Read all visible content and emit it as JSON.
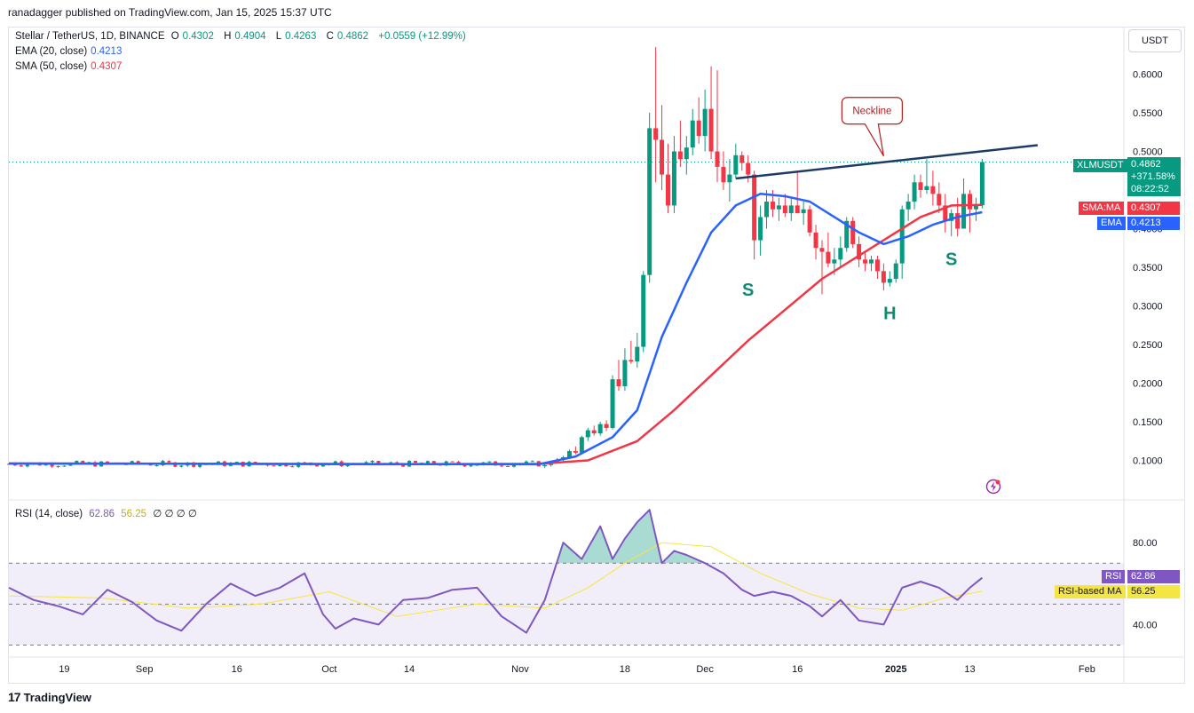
{
  "header": {
    "text": "ranadagger published on TradingView.com, Jan 15, 2025 15:37 UTC"
  },
  "legend": {
    "symbol": "Stellar / TetherUS, 1D, BINANCE",
    "open_label": "O",
    "open": "0.4302",
    "high_label": "H",
    "high": "0.4904",
    "low_label": "L",
    "low": "0.4263",
    "close_label": "C",
    "close": "0.4862",
    "change": "+0.0559 (+12.99%)",
    "ema_label": "EMA (20, close)",
    "ema_value": "0.4213",
    "sma_label": "SMA (50, close)",
    "sma_value": "0.4307",
    "rsi_label": "RSI (14, close)",
    "rsi_value": "62.86",
    "rsi_ma_value": "56.25",
    "rsi_extra": "∅ ∅ ∅ ∅"
  },
  "unit": "USDT",
  "price_tags": {
    "symbol": "XLMUSDT",
    "price": "0.4862",
    "change_pct": "+371.58%",
    "countdown": "08:22:52",
    "sma_label": "SMA:MA",
    "sma_value": "0.4307",
    "ema_label": "EMA",
    "ema_value": "0.4213",
    "rsi_label": "RSI",
    "rsi_value": "62.86",
    "rsi_ma_label": "RSI-based MA",
    "rsi_ma_value": "56.25"
  },
  "colors": {
    "up": "#089981",
    "down": "#f23645",
    "ema": "#2962ff",
    "sma": "#f23645",
    "rsi": "#7e57c2",
    "rsi_ma": "#f5e542",
    "trend": "#1e3a66",
    "annot": "#0f8a75"
  },
  "footer": {
    "brand": "TradingView",
    "logo": "17"
  },
  "chart_data": [
    {
      "type": "candlestick",
      "title": "Stellar / TetherUS, 1D, BINANCE",
      "ylim": [
        0.05,
        0.65
      ],
      "y_ticks": [
        "0.1000",
        "0.1500",
        "0.2000",
        "0.2500",
        "0.3000",
        "0.3500",
        "0.4000",
        "0.4500",
        "0.5000",
        "0.5500",
        "0.6000"
      ],
      "x_ticks": [
        "19",
        "Sep",
        "16",
        "Oct",
        "14",
        "Nov",
        "18",
        "Dec",
        "16",
        "2025",
        "13",
        "Feb"
      ],
      "x_tick_dates": [
        "2024-08-19",
        "2024-09-01",
        "2024-09-16",
        "2024-10-01",
        "2024-10-14",
        "2024-11-01",
        "2024-11-18",
        "2024-12-01",
        "2024-12-16",
        "2025-01-01",
        "2025-01-13",
        "2025-02-01"
      ],
      "x_start": "2024-08-10",
      "x_end": "2025-02-07",
      "candles": [
        {
          "d": "2024-11-05",
          "o": 0.0925,
          "h": 0.096,
          "l": 0.09,
          "c": 0.094
        },
        {
          "d": "2024-11-06",
          "o": 0.094,
          "h": 0.1,
          "l": 0.092,
          "c": 0.0985
        },
        {
          "d": "2024-11-07",
          "o": 0.0985,
          "h": 0.103,
          "l": 0.096,
          "c": 0.101
        },
        {
          "d": "2024-11-08",
          "o": 0.101,
          "h": 0.106,
          "l": 0.099,
          "c": 0.104
        },
        {
          "d": "2024-11-09",
          "o": 0.104,
          "h": 0.114,
          "l": 0.103,
          "c": 0.112
        },
        {
          "d": "2024-11-10",
          "o": 0.112,
          "h": 0.118,
          "l": 0.108,
          "c": 0.11
        },
        {
          "d": "2024-11-11",
          "o": 0.11,
          "h": 0.132,
          "l": 0.109,
          "c": 0.13
        },
        {
          "d": "2024-11-12",
          "o": 0.13,
          "h": 0.142,
          "l": 0.125,
          "c": 0.139
        },
        {
          "d": "2024-11-13",
          "o": 0.139,
          "h": 0.145,
          "l": 0.132,
          "c": 0.135
        },
        {
          "d": "2024-11-14",
          "o": 0.135,
          "h": 0.15,
          "l": 0.132,
          "c": 0.147
        },
        {
          "d": "2024-11-15",
          "o": 0.147,
          "h": 0.152,
          "l": 0.138,
          "c": 0.142
        },
        {
          "d": "2024-11-16",
          "o": 0.142,
          "h": 0.21,
          "l": 0.14,
          "c": 0.205
        },
        {
          "d": "2024-11-17",
          "o": 0.205,
          "h": 0.23,
          "l": 0.19,
          "c": 0.196
        },
        {
          "d": "2024-11-18",
          "o": 0.196,
          "h": 0.245,
          "l": 0.19,
          "c": 0.23
        },
        {
          "d": "2024-11-19",
          "o": 0.23,
          "h": 0.255,
          "l": 0.225,
          "c": 0.228
        },
        {
          "d": "2024-11-20",
          "o": 0.228,
          "h": 0.265,
          "l": 0.22,
          "c": 0.247
        },
        {
          "d": "2024-11-21",
          "o": 0.247,
          "h": 0.345,
          "l": 0.24,
          "c": 0.34
        },
        {
          "d": "2024-11-22",
          "o": 0.34,
          "h": 0.55,
          "l": 0.33,
          "c": 0.53
        },
        {
          "d": "2024-11-23",
          "o": 0.53,
          "h": 0.635,
          "l": 0.46,
          "c": 0.515
        },
        {
          "d": "2024-11-24",
          "o": 0.515,
          "h": 0.56,
          "l": 0.45,
          "c": 0.47
        },
        {
          "d": "2024-11-25",
          "o": 0.47,
          "h": 0.51,
          "l": 0.42,
          "c": 0.43
        },
        {
          "d": "2024-11-26",
          "o": 0.43,
          "h": 0.52,
          "l": 0.42,
          "c": 0.5
        },
        {
          "d": "2024-11-27",
          "o": 0.5,
          "h": 0.54,
          "l": 0.48,
          "c": 0.49
        },
        {
          "d": "2024-11-28",
          "o": 0.49,
          "h": 0.52,
          "l": 0.47,
          "c": 0.505
        },
        {
          "d": "2024-11-29",
          "o": 0.505,
          "h": 0.555,
          "l": 0.495,
          "c": 0.54
        },
        {
          "d": "2024-11-30",
          "o": 0.54,
          "h": 0.57,
          "l": 0.51,
          "c": 0.52
        },
        {
          "d": "2024-12-01",
          "o": 0.52,
          "h": 0.58,
          "l": 0.5,
          "c": 0.555
        },
        {
          "d": "2024-12-02",
          "o": 0.555,
          "h": 0.61,
          "l": 0.49,
          "c": 0.5
        },
        {
          "d": "2024-12-03",
          "o": 0.5,
          "h": 0.605,
          "l": 0.46,
          "c": 0.48
        },
        {
          "d": "2024-12-04",
          "o": 0.48,
          "h": 0.5,
          "l": 0.45,
          "c": 0.46
        },
        {
          "d": "2024-12-05",
          "o": 0.46,
          "h": 0.49,
          "l": 0.435,
          "c": 0.47
        },
        {
          "d": "2024-12-06",
          "o": 0.47,
          "h": 0.51,
          "l": 0.465,
          "c": 0.495
        },
        {
          "d": "2024-12-07",
          "o": 0.495,
          "h": 0.5,
          "l": 0.475,
          "c": 0.485
        },
        {
          "d": "2024-12-08",
          "o": 0.485,
          "h": 0.495,
          "l": 0.46,
          "c": 0.47
        },
        {
          "d": "2024-12-09",
          "o": 0.47,
          "h": 0.475,
          "l": 0.36,
          "c": 0.385
        },
        {
          "d": "2024-12-10",
          "o": 0.385,
          "h": 0.43,
          "l": 0.365,
          "c": 0.415
        },
        {
          "d": "2024-12-11",
          "o": 0.415,
          "h": 0.45,
          "l": 0.4,
          "c": 0.435
        },
        {
          "d": "2024-12-12",
          "o": 0.435,
          "h": 0.45,
          "l": 0.415,
          "c": 0.425
        },
        {
          "d": "2024-12-13",
          "o": 0.425,
          "h": 0.44,
          "l": 0.41,
          "c": 0.43
        },
        {
          "d": "2024-12-14",
          "o": 0.43,
          "h": 0.445,
          "l": 0.415,
          "c": 0.42
        },
        {
          "d": "2024-12-15",
          "o": 0.42,
          "h": 0.44,
          "l": 0.41,
          "c": 0.43
        },
        {
          "d": "2024-12-16",
          "o": 0.43,
          "h": 0.475,
          "l": 0.42,
          "c": 0.42
        },
        {
          "d": "2024-12-17",
          "o": 0.42,
          "h": 0.435,
          "l": 0.405,
          "c": 0.425
        },
        {
          "d": "2024-12-18",
          "o": 0.425,
          "h": 0.43,
          "l": 0.39,
          "c": 0.395
        },
        {
          "d": "2024-12-19",
          "o": 0.395,
          "h": 0.405,
          "l": 0.36,
          "c": 0.375
        },
        {
          "d": "2024-12-20",
          "o": 0.375,
          "h": 0.385,
          "l": 0.315,
          "c": 0.37
        },
        {
          "d": "2024-12-21",
          "o": 0.37,
          "h": 0.395,
          "l": 0.35,
          "c": 0.355
        },
        {
          "d": "2024-12-22",
          "o": 0.355,
          "h": 0.375,
          "l": 0.34,
          "c": 0.36
        },
        {
          "d": "2024-12-23",
          "o": 0.36,
          "h": 0.39,
          "l": 0.35,
          "c": 0.375
        },
        {
          "d": "2024-12-24",
          "o": 0.375,
          "h": 0.415,
          "l": 0.37,
          "c": 0.41
        },
        {
          "d": "2024-12-25",
          "o": 0.41,
          "h": 0.415,
          "l": 0.375,
          "c": 0.38
        },
        {
          "d": "2024-12-26",
          "o": 0.38,
          "h": 0.39,
          "l": 0.35,
          "c": 0.36
        },
        {
          "d": "2024-12-27",
          "o": 0.36,
          "h": 0.37,
          "l": 0.345,
          "c": 0.355
        },
        {
          "d": "2024-12-28",
          "o": 0.355,
          "h": 0.365,
          "l": 0.345,
          "c": 0.36
        },
        {
          "d": "2024-12-29",
          "o": 0.36,
          "h": 0.365,
          "l": 0.335,
          "c": 0.345
        },
        {
          "d": "2024-12-30",
          "o": 0.345,
          "h": 0.355,
          "l": 0.32,
          "c": 0.33
        },
        {
          "d": "2024-12-31",
          "o": 0.33,
          "h": 0.345,
          "l": 0.325,
          "c": 0.335
        },
        {
          "d": "2025-01-01",
          "o": 0.335,
          "h": 0.36,
          "l": 0.33,
          "c": 0.355
        },
        {
          "d": "2025-01-02",
          "o": 0.355,
          "h": 0.43,
          "l": 0.335,
          "c": 0.425
        },
        {
          "d": "2025-01-03",
          "o": 0.425,
          "h": 0.445,
          "l": 0.41,
          "c": 0.435
        },
        {
          "d": "2025-01-04",
          "o": 0.435,
          "h": 0.47,
          "l": 0.425,
          "c": 0.46
        },
        {
          "d": "2025-01-05",
          "o": 0.46,
          "h": 0.47,
          "l": 0.44,
          "c": 0.45
        },
        {
          "d": "2025-01-06",
          "o": 0.45,
          "h": 0.49,
          "l": 0.445,
          "c": 0.455
        },
        {
          "d": "2025-01-07",
          "o": 0.455,
          "h": 0.475,
          "l": 0.43,
          "c": 0.445
        },
        {
          "d": "2025-01-08",
          "o": 0.445,
          "h": 0.46,
          "l": 0.42,
          "c": 0.43
        },
        {
          "d": "2025-01-09",
          "o": 0.43,
          "h": 0.445,
          "l": 0.395,
          "c": 0.41
        },
        {
          "d": "2025-01-10",
          "o": 0.41,
          "h": 0.425,
          "l": 0.39,
          "c": 0.42
        },
        {
          "d": "2025-01-11",
          "o": 0.42,
          "h": 0.44,
          "l": 0.39,
          "c": 0.4
        },
        {
          "d": "2025-01-12",
          "o": 0.4,
          "h": 0.465,
          "l": 0.4,
          "c": 0.445
        },
        {
          "d": "2025-01-13",
          "o": 0.445,
          "h": 0.45,
          "l": 0.395,
          "c": 0.425
        },
        {
          "d": "2025-01-14",
          "o": 0.425,
          "h": 0.44,
          "l": 0.41,
          "c": 0.4302
        },
        {
          "d": "2025-01-15",
          "o": 0.4302,
          "h": 0.4904,
          "l": 0.4263,
          "c": 0.4862
        }
      ],
      "flat_period": {
        "start": "2024-08-10",
        "end": "2024-11-04",
        "mean": 0.0955,
        "amplitude": 0.004
      },
      "ema20": {
        "x": [
          "2024-08-10",
          "2024-11-04",
          "2024-11-10",
          "2024-11-16",
          "2024-11-20",
          "2024-11-24",
          "2024-11-28",
          "2024-12-02",
          "2024-12-06",
          "2024-12-10",
          "2024-12-14",
          "2024-12-18",
          "2024-12-22",
          "2024-12-26",
          "2024-12-30",
          "2025-01-03",
          "2025-01-07",
          "2025-01-11",
          "2025-01-15"
        ],
        "y": [
          0.096,
          0.095,
          0.105,
          0.13,
          0.165,
          0.26,
          0.33,
          0.395,
          0.43,
          0.445,
          0.442,
          0.435,
          0.415,
          0.395,
          0.38,
          0.39,
          0.405,
          0.415,
          0.4213
        ]
      },
      "sma50": {
        "x": [
          "2024-08-10",
          "2024-09-15",
          "2024-10-10",
          "2024-11-04",
          "2024-11-12",
          "2024-11-20",
          "2024-11-26",
          "2024-12-02",
          "2024-12-08",
          "2024-12-14",
          "2024-12-20",
          "2024-12-26",
          "2024-12-31",
          "2025-01-05",
          "2025-01-10",
          "2025-01-15"
        ],
        "y": [
          0.096,
          0.0955,
          0.095,
          0.0955,
          0.1,
          0.125,
          0.165,
          0.21,
          0.255,
          0.295,
          0.335,
          0.365,
          0.39,
          0.415,
          0.43,
          0.4307
        ]
      },
      "trendline": {
        "from": {
          "x": "2024-12-06",
          "y": 0.465
        },
        "to": {
          "x": "2025-01-24",
          "y": 0.508
        }
      },
      "annotations": {
        "neckline_label": "Neckline",
        "neckline_anchor": {
          "x": "2024-12-30",
          "y": 0.494
        },
        "pattern_labels": [
          {
            "text": "S",
            "x": "2024-12-08",
            "y": 0.313
          },
          {
            "text": "H",
            "x": "2024-12-31",
            "y": 0.283
          },
          {
            "text": "S",
            "x": "2025-01-10",
            "y": 0.353
          }
        ]
      },
      "last_price_line": 0.4862
    },
    {
      "type": "line",
      "title": "RSI (14, close)",
      "ylim": [
        25,
        100
      ],
      "y_ticks": [
        "40.00",
        "80.00"
      ],
      "bands": {
        "upper": 70,
        "lower": 30,
        "mid": 50
      },
      "series": [
        {
          "name": "RSI",
          "color": "#7e57c2",
          "x": [
            "2024-08-10",
            "2024-08-14",
            "2024-08-18",
            "2024-08-22",
            "2024-08-26",
            "2024-08-30",
            "2024-09-03",
            "2024-09-07",
            "2024-09-11",
            "2024-09-15",
            "2024-09-19",
            "2024-09-23",
            "2024-09-27",
            "2024-09-30",
            "2024-10-02",
            "2024-10-05",
            "2024-10-09",
            "2024-10-13",
            "2024-10-17",
            "2024-10-21",
            "2024-10-25",
            "2024-10-29",
            "2024-11-02",
            "2024-11-05",
            "2024-11-08",
            "2024-11-11",
            "2024-11-14",
            "2024-11-16",
            "2024-11-18",
            "2024-11-20",
            "2024-11-22",
            "2024-11-24",
            "2024-11-26",
            "2024-11-28",
            "2024-12-01",
            "2024-12-04",
            "2024-12-07",
            "2024-12-09",
            "2024-12-12",
            "2024-12-15",
            "2024-12-18",
            "2024-12-20",
            "2024-12-23",
            "2024-12-26",
            "2024-12-30",
            "2025-01-02",
            "2025-01-05",
            "2025-01-08",
            "2025-01-11",
            "2025-01-13",
            "2025-01-15"
          ],
          "y": [
            58,
            52,
            49,
            45,
            57,
            51,
            42,
            37,
            50,
            60,
            54,
            58,
            65,
            45,
            38,
            43,
            40,
            52,
            53,
            57,
            58,
            44,
            36,
            52,
            80,
            72,
            88,
            72,
            82,
            90,
            96,
            70,
            76,
            74,
            70,
            65,
            57,
            54,
            56,
            54,
            49,
            44,
            52,
            42,
            40,
            58,
            61,
            58,
            52,
            58,
            62.86
          ]
        },
        {
          "name": "RSI-based MA",
          "color": "#f5e542",
          "x": [
            "2024-08-10",
            "2024-08-25",
            "2024-09-08",
            "2024-09-20",
            "2024-10-01",
            "2024-10-12",
            "2024-10-25",
            "2024-11-05",
            "2024-11-12",
            "2024-11-18",
            "2024-11-24",
            "2024-12-02",
            "2024-12-10",
            "2024-12-18",
            "2024-12-26",
            "2025-01-02",
            "2025-01-09",
            "2025-01-15"
          ],
          "y": [
            54,
            53,
            48,
            50,
            56,
            44,
            50,
            48,
            58,
            70,
            80,
            78,
            65,
            55,
            48,
            47,
            53,
            56.25
          ]
        }
      ]
    }
  ]
}
